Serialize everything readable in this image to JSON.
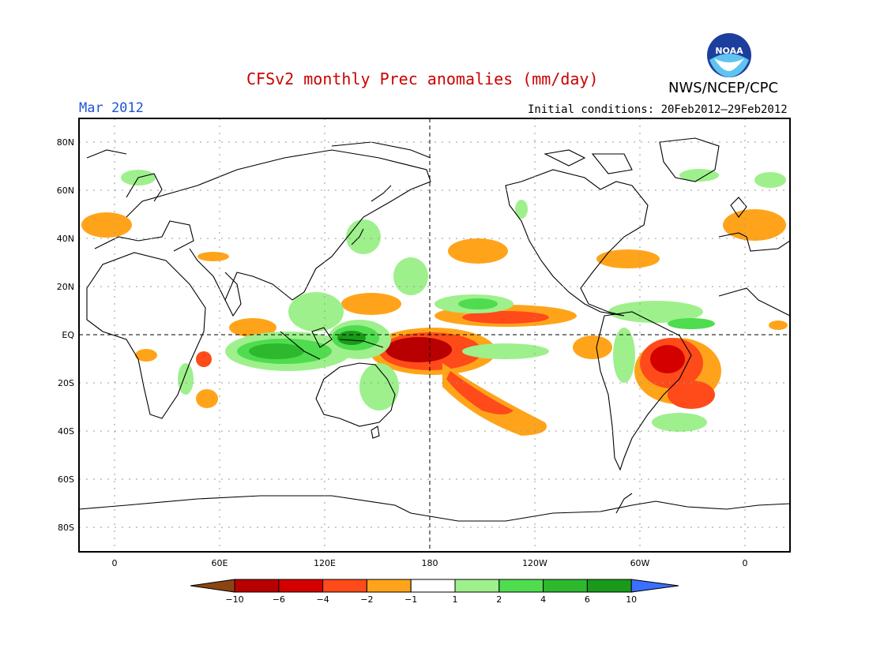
{
  "header": {
    "title": "CFSv2 monthly Prec anomalies (mm/day)",
    "org": "NWS/NCEP/CPC",
    "logo_text": "NOAA",
    "month": "Mar 2012",
    "initial_conditions": "Initial conditions: 20Feb2012–29Feb2012"
  },
  "map": {
    "y_ticks": [
      "80N",
      "60N",
      "40N",
      "20N",
      "EQ",
      "20S",
      "40S",
      "60S",
      "80S"
    ],
    "x_ticks": [
      "0",
      "60E",
      "120E",
      "180",
      "120W",
      "60W",
      "0"
    ],
    "grid": true
  },
  "colorbar": {
    "labels": [
      "−10",
      "−6",
      "−4",
      "−2",
      "−1",
      "1",
      "2",
      "4",
      "6",
      "10"
    ],
    "colors": [
      "#8b4513",
      "#b80000",
      "#d40000",
      "#ff4a1a",
      "#ffa41a",
      "#ffffff",
      "#9ef08c",
      "#4fdc4f",
      "#2eb82e",
      "#1a9a1a",
      "#3a6fff"
    ]
  },
  "colors": {
    "title": "#cc0000",
    "month": "#1f55d6",
    "land_outline": "#000000",
    "wet_light": "#9ef08c",
    "wet_med": "#4fdc4f",
    "wet_dark": "#1a9a1a",
    "dry_light": "#ffa41a",
    "dry_med": "#ff4a1a",
    "dry_dark": "#b80000"
  }
}
